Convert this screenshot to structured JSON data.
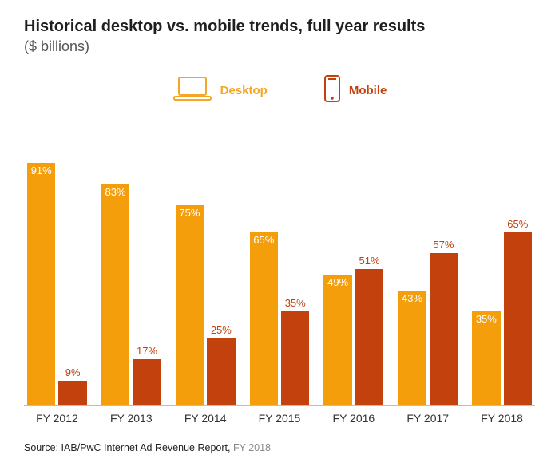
{
  "title": "Historical desktop vs. mobile trends, full year results",
  "subtitle": "($ billions)",
  "legend": {
    "desktop": {
      "label": "Desktop",
      "color": "#f5a623"
    },
    "mobile": {
      "label": "Mobile",
      "color": "#c2410c"
    }
  },
  "chart": {
    "type": "bar",
    "background_color": "#ffffff",
    "axis_line_color": "#bdbdbd",
    "y_axis": {
      "visible": false,
      "ylim": [
        0,
        100
      ]
    },
    "bar_gap_within_group": 4,
    "group_gap": 18,
    "label_fontsize": 13,
    "xlabel_fontsize": 14,
    "colors": {
      "desktop": "#f5a623",
      "mobile": "#c2410c"
    },
    "categories": [
      "FY 2012",
      "FY 2013",
      "FY 2014",
      "FY 2015",
      "FY 2016",
      "FY 2017",
      "FY 2018"
    ],
    "series": [
      {
        "name": "desktop",
        "values": [
          91,
          83,
          75,
          65,
          49,
          43,
          35
        ],
        "value_label_position": "inside-top",
        "value_label_color": "#ffffff"
      },
      {
        "name": "mobile",
        "values": [
          9,
          17,
          25,
          35,
          51,
          57,
          65
        ],
        "value_label_position": "outside-top",
        "value_label_color": "#c2410c"
      }
    ],
    "data": [
      {
        "cat": "FY 2012",
        "desktop": 91,
        "mobile": 9
      },
      {
        "cat": "FY 2013",
        "desktop": 83,
        "mobile": 17
      },
      {
        "cat": "FY 2014",
        "desktop": 75,
        "mobile": 25
      },
      {
        "cat": "FY 2015",
        "desktop": 65,
        "mobile": 35
      },
      {
        "cat": "FY 2016",
        "desktop": 49,
        "mobile": 51
      },
      {
        "cat": "FY 2017",
        "desktop": 43,
        "mobile": 57
      },
      {
        "cat": "FY 2018",
        "desktop": 35,
        "mobile": 65
      }
    ]
  },
  "source": {
    "prefix": "Source: IAB/PwC Internet Ad Revenue Report,",
    "suffix": "FY 2018"
  }
}
